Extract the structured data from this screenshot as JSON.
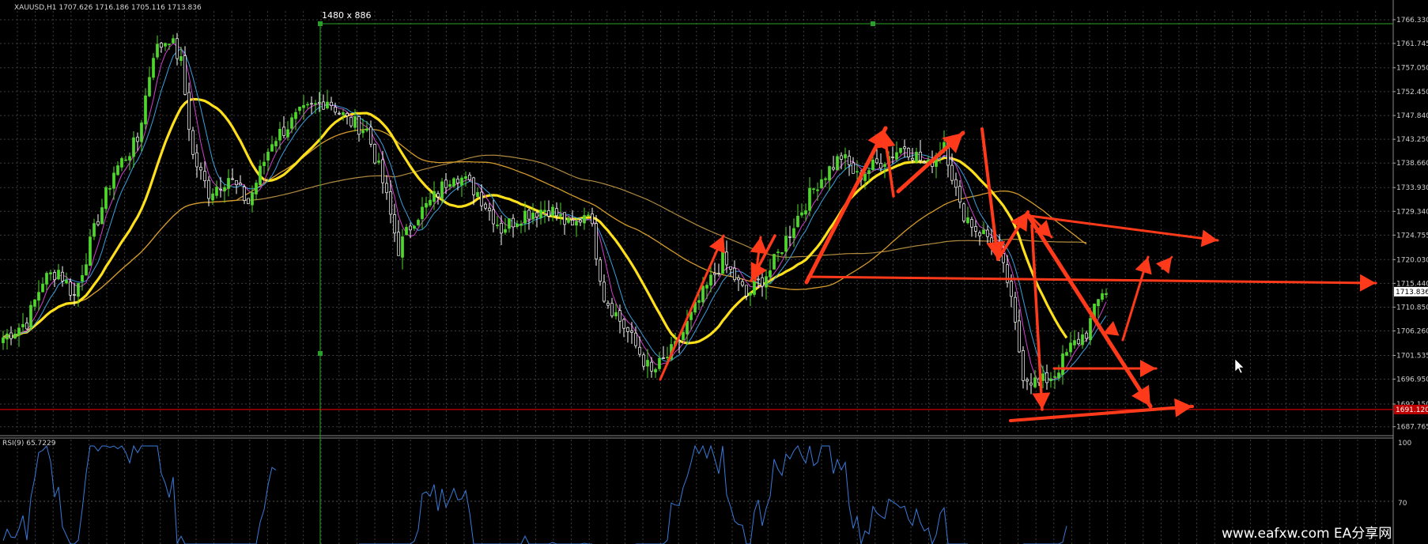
{
  "header": {
    "symbol_info": "XAUUSD,H1  1707.626 1716.186 1705.116 1713.836",
    "crosshair_readout": "1480 x 886"
  },
  "rsi_panel": {
    "label": "RSI(9) 65.7229",
    "levels": [
      "100",
      "70"
    ]
  },
  "watermark": "www.eafxw.com   EA分享网",
  "colors": {
    "background": "#000000",
    "grid": "#3c3c3c",
    "bull_candle": "#4fd82c",
    "bear_candle": "#ffffff",
    "ma_fast_magenta": "#d040d0",
    "ma_fast_blue": "#3aa0e0",
    "ma_mid_yellow": "#ffe01a",
    "ma_slow_orange": "#d49a2a",
    "ma_slowest_tan": "#b08a40",
    "support_line": "#cc0000",
    "arrows": "#ff3a1a",
    "rsi_line": "#3a7ad8",
    "crosshair": "#2aa02a"
  },
  "chart_data": {
    "type": "candlestick",
    "symbol": "XAUUSD",
    "timeframe": "H1",
    "ohlc_last": {
      "open": 1707.626,
      "high": 1716.186,
      "low": 1705.116,
      "close": 1713.836
    },
    "ylim": [
      1686.5,
      1768
    ],
    "y_ticks": [
      "1766.330",
      "1761.745",
      "1757.050",
      "1752.450",
      "1747.840",
      "1743.250",
      "1738.660",
      "1733.930",
      "1729.340",
      "1724.755",
      "1720.030",
      "1715.440",
      "1713.836",
      "1710.850",
      "1706.260",
      "1701.535",
      "1696.950",
      "1692.150",
      "1687.765"
    ],
    "current_price_label": "1713.836",
    "support_level": 1691.1,
    "support_label": "1691.120",
    "close_path": [
      [
        0,
        1705
      ],
      [
        6,
        1708
      ],
      [
        10,
        1716
      ],
      [
        14,
        1718
      ],
      [
        18,
        1713
      ],
      [
        24,
        1728
      ],
      [
        28,
        1737
      ],
      [
        34,
        1743
      ],
      [
        38,
        1760
      ],
      [
        42,
        1763
      ],
      [
        45,
        1758
      ],
      [
        48,
        1740
      ],
      [
        52,
        1733
      ],
      [
        57,
        1736
      ],
      [
        62,
        1731
      ],
      [
        68,
        1743
      ],
      [
        75,
        1748
      ],
      [
        82,
        1751
      ],
      [
        87,
        1747
      ],
      [
        92,
        1745
      ],
      [
        96,
        1735
      ],
      [
        100,
        1722
      ],
      [
        104,
        1728
      ],
      [
        108,
        1731
      ],
      [
        114,
        1737
      ],
      [
        120,
        1733
      ],
      [
        126,
        1726
      ],
      [
        132,
        1729
      ],
      [
        138,
        1730
      ],
      [
        144,
        1726
      ],
      [
        148,
        1730
      ],
      [
        152,
        1713
      ],
      [
        158,
        1706
      ],
      [
        164,
        1698
      ],
      [
        170,
        1703
      ],
      [
        176,
        1712
      ],
      [
        182,
        1720
      ],
      [
        188,
        1713
      ],
      [
        194,
        1718
      ],
      [
        200,
        1727
      ],
      [
        206,
        1735
      ],
      [
        212,
        1740
      ],
      [
        216,
        1736
      ],
      [
        222,
        1739
      ],
      [
        228,
        1742
      ],
      [
        234,
        1738
      ],
      [
        238,
        1743
      ],
      [
        242,
        1730
      ],
      [
        246,
        1726
      ],
      [
        250,
        1724
      ],
      [
        254,
        1716
      ],
      [
        258,
        1698
      ],
      [
        262,
        1696
      ],
      [
        266,
        1698
      ],
      [
        270,
        1703
      ],
      [
        274,
        1706
      ],
      [
        278,
        1714
      ]
    ],
    "rsi": {
      "period": 9,
      "last": 65.7229,
      "range": [
        0,
        100
      ],
      "levels": [
        100,
        70
      ]
    }
  }
}
